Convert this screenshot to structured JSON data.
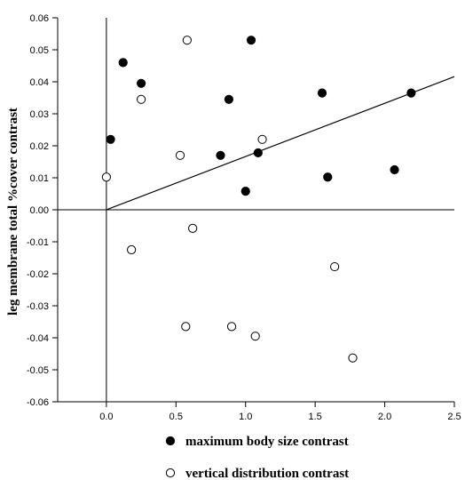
{
  "chart_data": {
    "type": "scatter",
    "ylabel": "leg membrane total %cover contrast",
    "xlabel": "",
    "xlim": [
      -0.35,
      2.5
    ],
    "ylim": [
      -0.06,
      0.06
    ],
    "x_ticks": [
      0.0,
      0.5,
      1.0,
      1.5,
      2.0,
      2.5
    ],
    "x_tick_labels": [
      "0.0",
      "0.5",
      "1.0",
      "1.5",
      "2.0",
      "2.5"
    ],
    "y_ticks": [
      0.06,
      0.05,
      0.04,
      0.03,
      0.02,
      0.01,
      0.0,
      -0.01,
      -0.02,
      -0.03,
      -0.04,
      -0.05,
      -0.06
    ],
    "y_tick_labels": [
      "0.06",
      "0.05",
      "0.04",
      "0.03",
      "0.02",
      "0.01",
      "0.00",
      "-0.01",
      "-0.02",
      "-0.03",
      "-0.04",
      "-0.05",
      "-0.06"
    ],
    "grid": false,
    "legend_position": "bottom",
    "series": [
      {
        "name": "maximum body size contrast",
        "marker": "filled-circle",
        "color": "#000000",
        "points": [
          {
            "x": 0.03,
            "y": 0.022
          },
          {
            "x": 0.12,
            "y": 0.046
          },
          {
            "x": 0.25,
            "y": 0.0395
          },
          {
            "x": 0.82,
            "y": 0.017
          },
          {
            "x": 0.88,
            "y": 0.0345
          },
          {
            "x": 1.0,
            "y": 0.0058
          },
          {
            "x": 1.04,
            "y": 0.053
          },
          {
            "x": 1.09,
            "y": 0.0178
          },
          {
            "x": 1.55,
            "y": 0.0365
          },
          {
            "x": 1.59,
            "y": 0.0102
          },
          {
            "x": 2.07,
            "y": 0.0125
          },
          {
            "x": 2.19,
            "y": 0.0365
          }
        ]
      },
      {
        "name": "vertical distribution contrast",
        "marker": "open-circle",
        "color": "#000000",
        "points": [
          {
            "x": 0.0,
            "y": 0.0102
          },
          {
            "x": 0.18,
            "y": -0.0125
          },
          {
            "x": 0.25,
            "y": 0.0345
          },
          {
            "x": 0.53,
            "y": 0.017
          },
          {
            "x": 0.57,
            "y": -0.0365
          },
          {
            "x": 0.58,
            "y": 0.053
          },
          {
            "x": 0.62,
            "y": -0.0058
          },
          {
            "x": 0.9,
            "y": -0.0365
          },
          {
            "x": 1.07,
            "y": -0.0395
          },
          {
            "x": 1.12,
            "y": 0.022
          },
          {
            "x": 1.64,
            "y": -0.0178
          },
          {
            "x": 1.77,
            "y": -0.0463
          }
        ]
      }
    ],
    "fit_line": {
      "x": [
        0.0,
        2.5
      ],
      "y": [
        0.0,
        0.0416
      ]
    }
  }
}
